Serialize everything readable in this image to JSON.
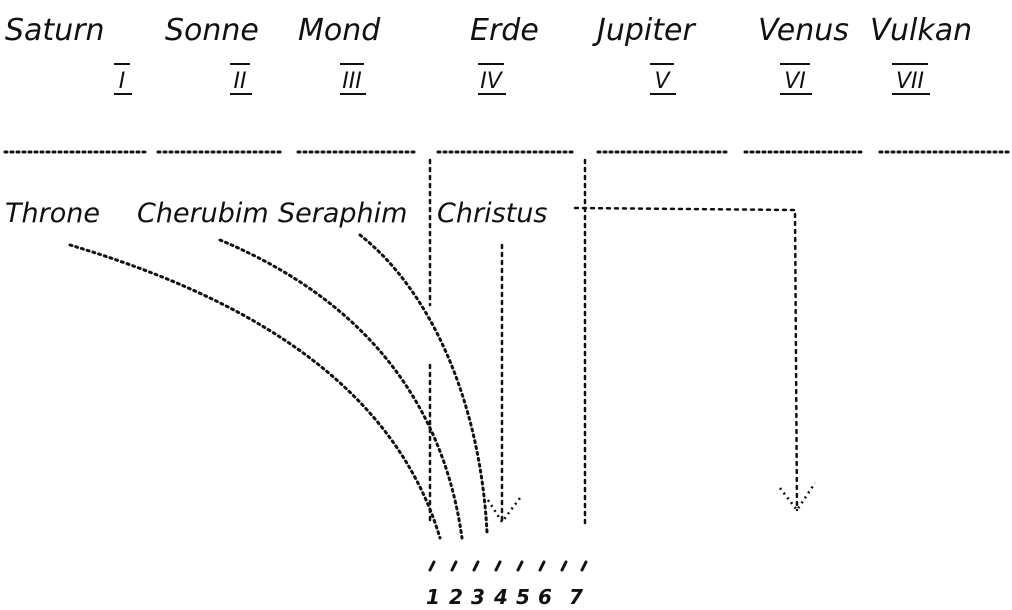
{
  "planets": [
    "Saturn",
    "Sonne",
    "Mond",
    "Erde",
    "Jupiter",
    "Venus",
    "Vulkan"
  ],
  "numerals": [
    "I",
    "II",
    "III",
    "IV",
    "V",
    "VI",
    "VII"
  ],
  "hierarchies": [
    "Throne",
    "Cherubim",
    "Seraphim",
    "Christus"
  ],
  "digits": [
    "1",
    "2",
    "3",
    "4",
    "5",
    "6",
    "7"
  ]
}
